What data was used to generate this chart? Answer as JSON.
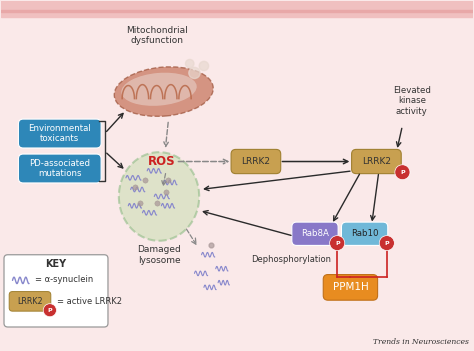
{
  "background_color": "#fae9e9",
  "fig_width": 4.74,
  "fig_height": 3.51,
  "labels": {
    "mitochondrial": "Mitochondrial\ndysfunction",
    "environmental": "Environmental\ntoxicants",
    "pd_mutations": "PD-associated\nmutations",
    "ros": "ROS",
    "lrrk2_inactive": "LRRK2",
    "lrrk2_active": "LRRK2",
    "elevated": "Elevated\nkinase\nactivity",
    "rab8a": "Rab8A",
    "rab10": "Rab10",
    "ppm1h": "PPM1H",
    "dephosphorylation": "Dephosphorylation",
    "damaged": "Damaged\nlysosome",
    "key_title": "KEY",
    "key_synuclein": "= α-synuclein",
    "key_lrrk2": "= active LRRK2",
    "trends": "Trends in Neurosciences",
    "p_label": "P"
  },
  "colors": {
    "box_blue": "#2e87b8",
    "box_tan": "#c8a050",
    "box_orange": "#e88c20",
    "box_purple": "#8878c8",
    "box_light_blue": "#70b8d8",
    "ros_red": "#cc2222",
    "p_circle": "#c83030",
    "arrow_black": "#2a2a2a",
    "arrow_gray": "#888888",
    "lysosome_fill": "#c8ddb0",
    "lysosome_border": "#88b880",
    "mito_brown": "#c87860",
    "mito_inner": "#b86848",
    "top_bar": "#f0c0c0",
    "key_border": "#888888",
    "synuclein_color": "#8888cc",
    "dot_color": "#9988aa"
  },
  "layout": {
    "xlim": [
      0,
      10
    ],
    "ylim": [
      0,
      7.5
    ]
  }
}
